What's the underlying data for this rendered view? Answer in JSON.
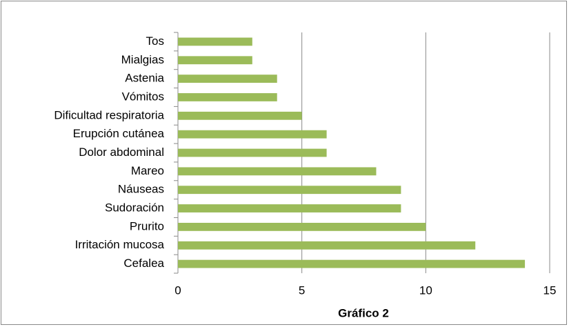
{
  "chart_data": {
    "type": "hbar",
    "x_label": "Gráfico 2",
    "categories": [
      "Tos",
      "Mialgias",
      "Astenia",
      "Vómitos",
      "Dificultad respiratoria",
      "Erupción cutánea",
      "Dolor abdominal",
      "Mareo",
      "Náuseas",
      "Sudoración",
      "Prurito",
      "Irritación mucosa",
      "Cefalea"
    ],
    "values": [
      3,
      3,
      4,
      4,
      5,
      6,
      6,
      8,
      9,
      9,
      10,
      12,
      14
    ],
    "color": "#9bbb59",
    "xlim": [
      0,
      15
    ],
    "xticks": [
      0,
      5,
      10,
      15
    ],
    "grid": true
  }
}
